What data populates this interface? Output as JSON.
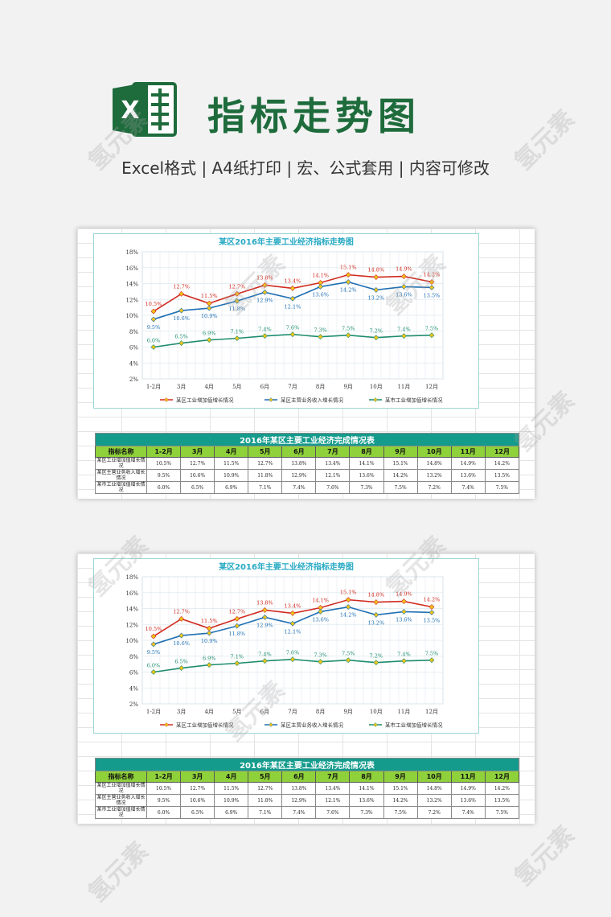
{
  "header": {
    "title": "指标走势图",
    "subtitle": "Excel格式 |  A4纸打印 | 宏、公式套用 | 内容可修改",
    "logo_text": "X"
  },
  "watermark": "氢元素",
  "colors": {
    "brand_green": "#1e6b3c",
    "series_red": "#d12a1f",
    "series_blue": "#1f6fb3",
    "series_green": "#1e8c6e",
    "marker": "#f0c419",
    "table_title_bg": "#149b8c",
    "table_header_bg": "#8fd13b"
  },
  "chart_data": {
    "type": "line",
    "title": "某区2016年主要工业经济指标走势图",
    "categories": [
      "1-2月",
      "3月",
      "4月",
      "5月",
      "6月",
      "7月",
      "8月",
      "9月",
      "10月",
      "11月",
      "12月"
    ],
    "ylim": [
      2,
      18
    ],
    "yticks": [
      "2%",
      "4%",
      "6%",
      "8%",
      "10%",
      "12%",
      "14%",
      "16%",
      "18%"
    ],
    "grid": true,
    "legend_position": "bottom",
    "series": [
      {
        "name": "某区工业增加值增长情况",
        "color": "#d12a1f",
        "values": [
          10.5,
          12.7,
          11.5,
          12.7,
          13.8,
          13.4,
          14.1,
          15.1,
          14.8,
          14.9,
          14.2
        ],
        "labels": [
          "10.5%",
          "12.7%",
          "11.5%",
          "12.7%",
          "13.8%",
          "13.4%",
          "14.1%",
          "15.1%",
          "14.8%",
          "14.9%",
          "14.2%"
        ]
      },
      {
        "name": "某区主营业务收入增长情况",
        "color": "#1f6fb3",
        "values": [
          9.5,
          10.6,
          10.9,
          11.8,
          12.9,
          12.1,
          13.6,
          14.2,
          13.2,
          13.6,
          13.5
        ],
        "labels": [
          "9.5%",
          "10.6%",
          "10.9%",
          "11.8%",
          "12.9%",
          "12.1%",
          "13.6%",
          "14.2%",
          "13.2%",
          "13.6%",
          "13.5%"
        ]
      },
      {
        "name": "某市工业增加值增长情况",
        "color": "#1e8c6e",
        "values": [
          6.0,
          6.5,
          6.9,
          7.1,
          7.4,
          7.6,
          7.3,
          7.5,
          7.2,
          7.4,
          7.5
        ],
        "labels": [
          "6.0%",
          "6.5%",
          "6.9%",
          "7.1%",
          "7.4%",
          "7.6%",
          "7.3%",
          "7.5%",
          "7.2%",
          "7.4%",
          "7.5%"
        ]
      }
    ]
  },
  "table": {
    "title": "2016年某区主要工业经济完成情况表",
    "headers": [
      "指标名称",
      "1-2月",
      "3月",
      "4月",
      "5月",
      "6月",
      "7月",
      "8月",
      "9月",
      "10月",
      "11月",
      "12月"
    ],
    "rows": [
      {
        "label": "某区工业增加值增长情况",
        "values": [
          "10.5%",
          "12.7%",
          "11.5%",
          "12.7%",
          "13.8%",
          "13.4%",
          "14.1%",
          "15.1%",
          "14.8%",
          "14.9%",
          "14.2%"
        ]
      },
      {
        "label": "某区主营业务收入增长情况",
        "values": [
          "9.5%",
          "10.6%",
          "10.9%",
          "11.8%",
          "12.9%",
          "12.1%",
          "13.6%",
          "14.2%",
          "13.2%",
          "13.6%",
          "13.5%"
        ]
      },
      {
        "label": "某市工业增加值增长情况",
        "values": [
          "6.0%",
          "6.5%",
          "6.9%",
          "7.1%",
          "7.4%",
          "7.6%",
          "7.3%",
          "7.5%",
          "7.2%",
          "7.4%",
          "7.5%"
        ]
      }
    ]
  }
}
